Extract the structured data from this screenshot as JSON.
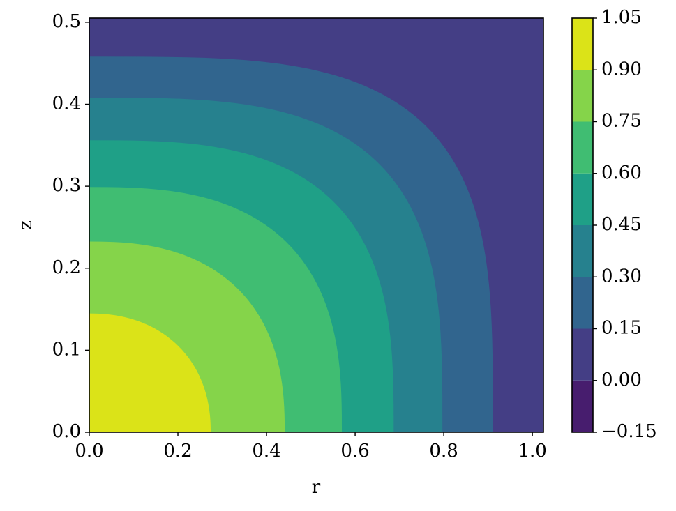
{
  "chart_data": {
    "type": "contour",
    "xlabel": "r",
    "ylabel": "z",
    "xlim": [
      0,
      1.025
    ],
    "ylim": [
      0,
      0.505
    ],
    "xticks": [
      {
        "value": 0,
        "label": "0.0"
      },
      0.2,
      0.4,
      0.6,
      0.8,
      {
        "value": 1,
        "label": "1.0"
      }
    ],
    "yticks": [
      {
        "value": 0,
        "label": "0.0"
      },
      0.1,
      0.2,
      0.3,
      0.4,
      0.5
    ],
    "levels": [
      -0.15,
      0,
      0.15,
      0.3,
      0.45,
      0.6,
      0.75,
      0.9,
      1.05
    ],
    "colors": [
      "#471d6e",
      "#443e85",
      "#31658e",
      "#26818e",
      "#1fa087",
      "#40bd72",
      "#85d44a",
      "#dbe318"
    ],
    "colorbar_ticks": [
      {
        "value": -0.15,
        "label": "−0.15"
      },
      {
        "value": 0,
        "label": "0.00"
      },
      0.15,
      {
        "value": 0.3,
        "label": "0.30"
      },
      0.45,
      {
        "value": 0.6,
        "label": "0.60"
      },
      0.75,
      {
        "value": 0.9,
        "label": "0.90"
      },
      1.05
    ],
    "contours": [
      {
        "level": 0.15,
        "r": 0.911,
        "z": 0.458
      },
      {
        "level": 0.3,
        "r": 0.797,
        "z": 0.408
      },
      {
        "level": 0.45,
        "r": 0.687,
        "z": 0.356
      },
      {
        "level": 0.6,
        "r": 0.57,
        "z": 0.299
      },
      {
        "level": 0.75,
        "r": 0.441,
        "z": 0.2325
      },
      {
        "level": 0.9,
        "r": 0.274,
        "z": 0.1448
      }
    ]
  }
}
